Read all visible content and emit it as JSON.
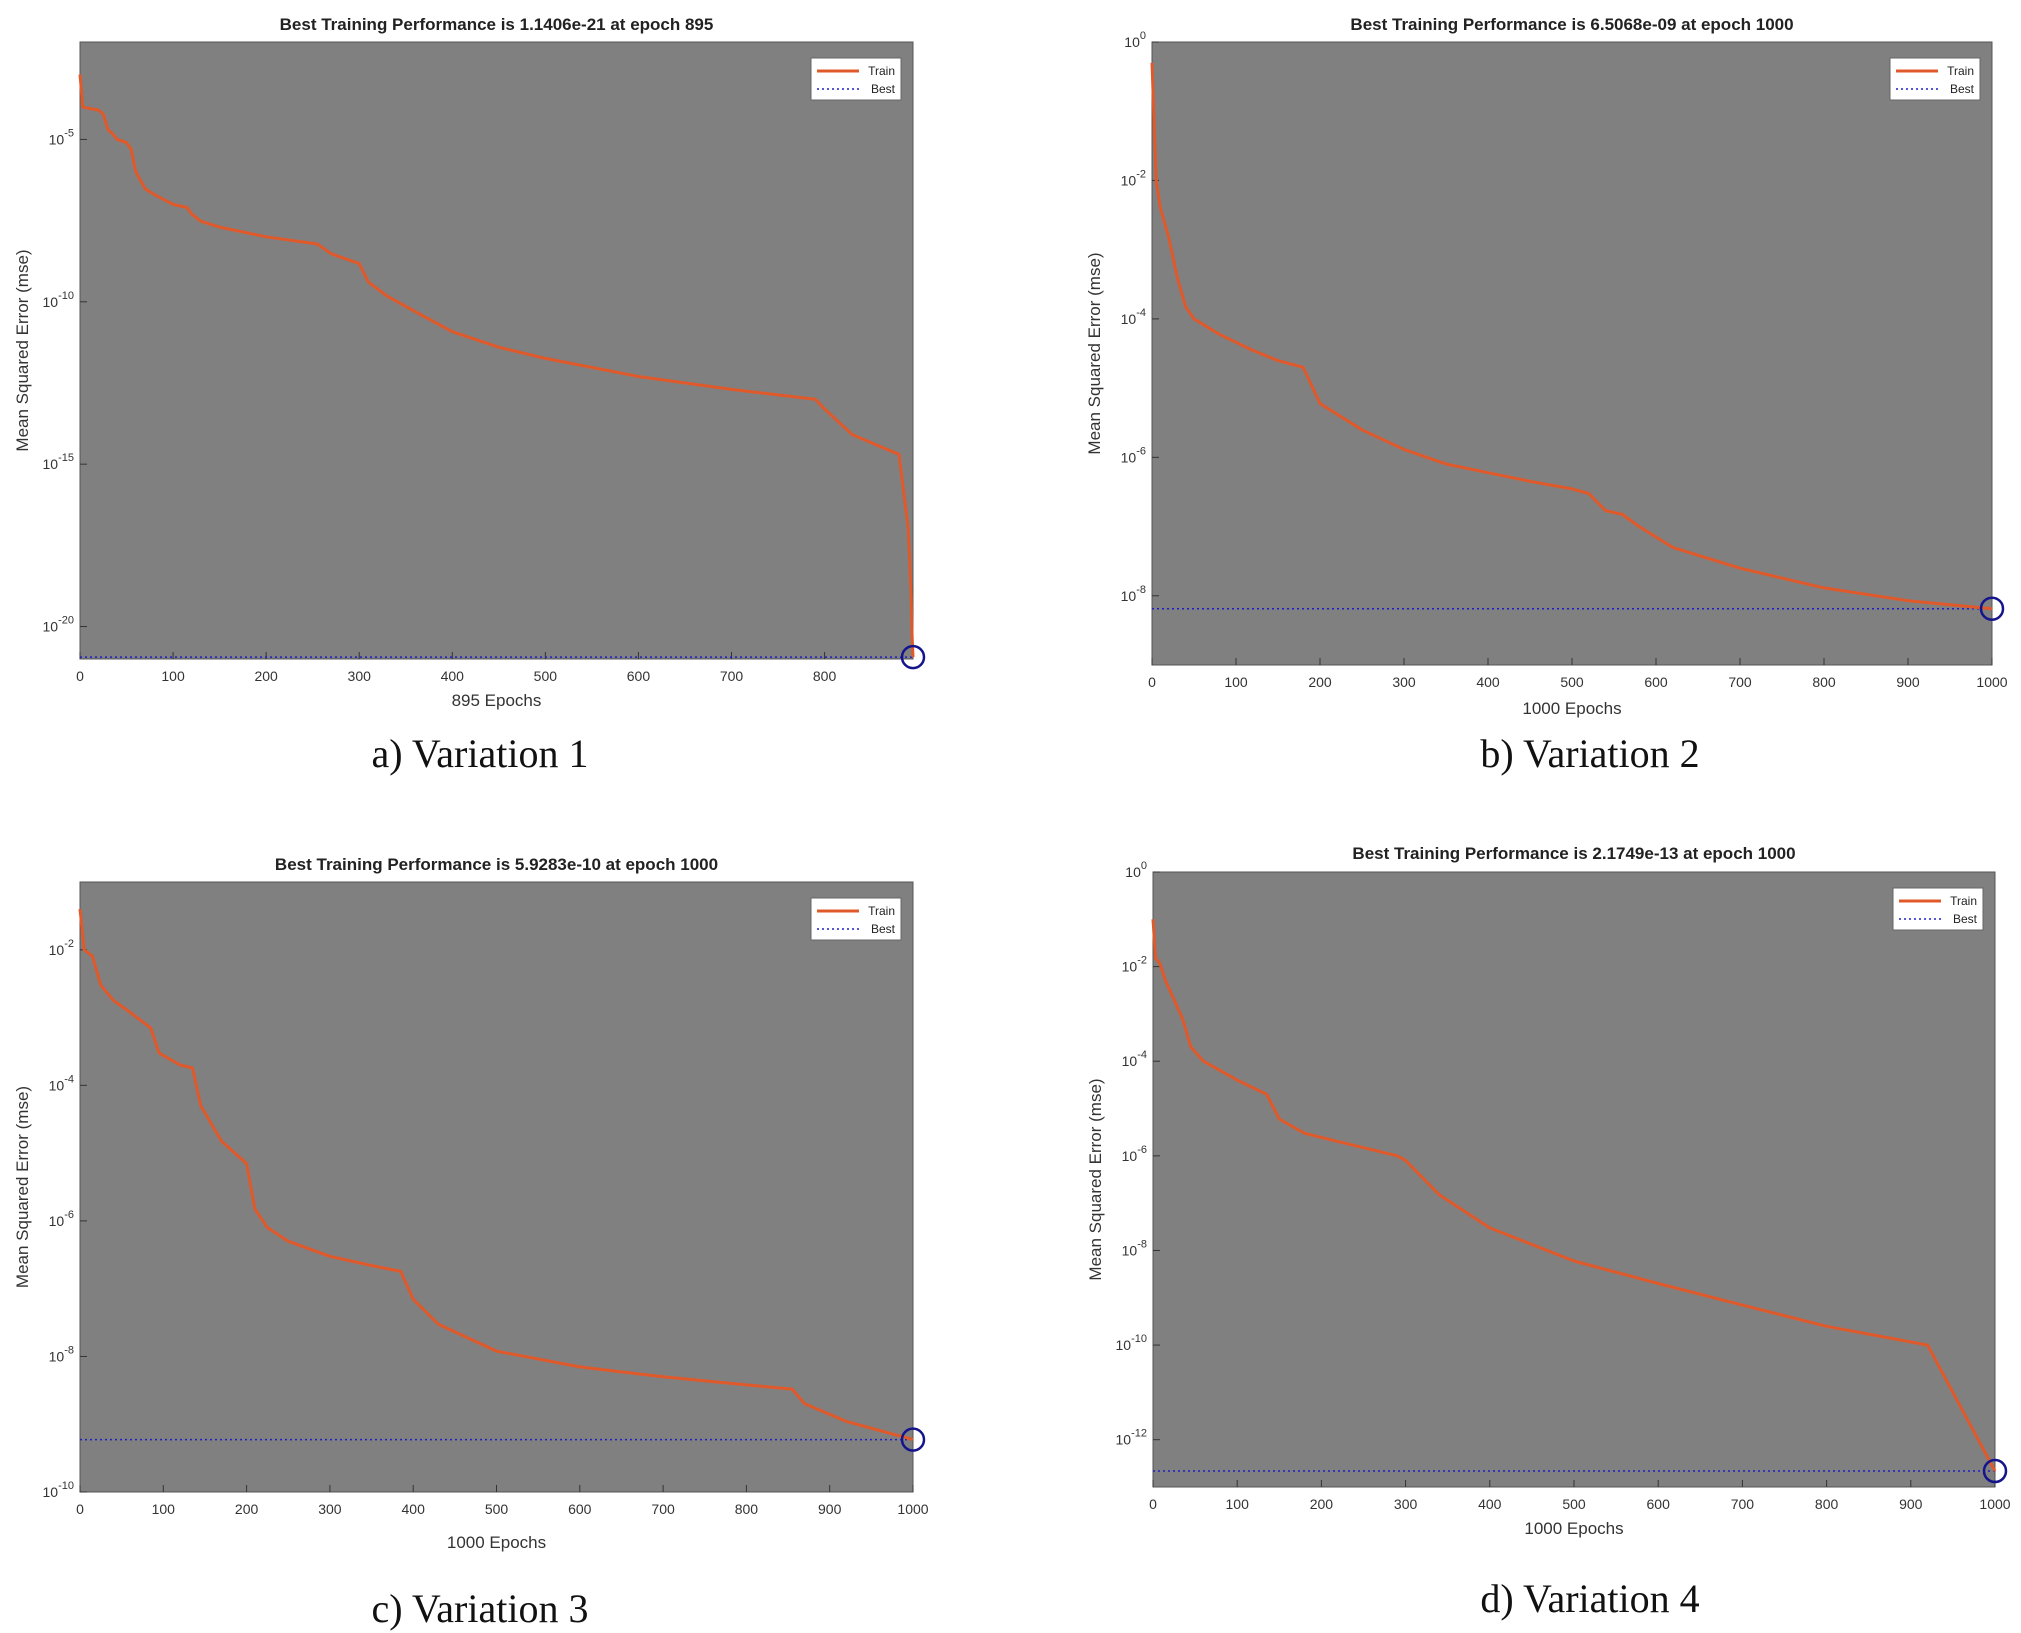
{
  "chart_data": [
    {
      "type": "line",
      "title": "Best Training Performance is 1.1406e-21 at epoch 895",
      "xlabel": "895 Epochs",
      "ylabel": "Mean Squared Error  (mse)",
      "caption": "a) Variation 1",
      "y_scale": "log",
      "xlim": [
        0,
        895
      ],
      "ylim": [
        1e-21,
        0.01
      ],
      "x_ticks": [
        0,
        100,
        200,
        300,
        400,
        500,
        600,
        700,
        800
      ],
      "y_ticks": [
        {
          "base": "10",
          "exp": "-5"
        },
        {
          "base": "10",
          "exp": "-10"
        },
        {
          "base": "10",
          "exp": "-15"
        },
        {
          "base": "10",
          "exp": "-20"
        }
      ],
      "y_tick_values": [
        1e-05,
        1e-10,
        1e-15,
        1e-20
      ],
      "legend": {
        "position": "top-right",
        "entries": [
          "Train",
          "Best"
        ]
      },
      "grid": false,
      "series": [
        {
          "name": "Train",
          "x": [
            0,
            3,
            10,
            20,
            25,
            30,
            35,
            40,
            50,
            55,
            60,
            70,
            80,
            100,
            115,
            120,
            130,
            150,
            200,
            255,
            270,
            300,
            310,
            330,
            360,
            400,
            450,
            500,
            600,
            700,
            790,
            800,
            830,
            880,
            890,
            893,
            894,
            895
          ],
          "y": [
            0.001,
            0.0001,
            9e-05,
            8e-05,
            6e-05,
            2e-05,
            1.5e-05,
            1e-05,
            8e-06,
            5e-06,
            1e-06,
            3e-07,
            2e-07,
            1e-07,
            8e-08,
            5e-08,
            3e-08,
            2e-08,
            1e-08,
            6e-09,
            3e-09,
            1.5e-09,
            4e-10,
            1.5e-10,
            5e-11,
            1.2e-11,
            4e-12,
            1.8e-12,
            5e-13,
            2e-13,
            1e-13,
            5e-14,
            8e-15,
            2e-15,
            1e-17,
            1e-19,
            5e-21,
            1.1406e-21
          ]
        },
        {
          "name": "Best",
          "value": 1.1406e-21,
          "epoch": 895
        }
      ]
    },
    {
      "type": "line",
      "title": "Best Training Performance is 6.5068e-09 at epoch 1000",
      "xlabel": "1000 Epochs",
      "ylabel": "Mean Squared Error  (mse)",
      "caption": "b) Variation 2",
      "y_scale": "log",
      "xlim": [
        0,
        1000
      ],
      "ylim": [
        1e-09,
        1
      ],
      "x_ticks": [
        0,
        100,
        200,
        300,
        400,
        500,
        600,
        700,
        800,
        900,
        1000
      ],
      "y_ticks": [
        {
          "base": "10",
          "exp": "0"
        },
        {
          "base": "10",
          "exp": "-2"
        },
        {
          "base": "10",
          "exp": "-4"
        },
        {
          "base": "10",
          "exp": "-6"
        },
        {
          "base": "10",
          "exp": "-8"
        }
      ],
      "y_tick_values": [
        1,
        0.01,
        0.0001,
        1e-06,
        1e-08
      ],
      "legend": {
        "position": "top-right",
        "entries": [
          "Train",
          "Best"
        ]
      },
      "grid": false,
      "series": [
        {
          "name": "Train",
          "x": [
            0,
            2,
            5,
            10,
            20,
            30,
            40,
            50,
            80,
            120,
            150,
            180,
            200,
            250,
            300,
            350,
            400,
            450,
            500,
            520,
            540,
            560,
            580,
            620,
            700,
            800,
            900,
            1000
          ],
          "y": [
            0.5,
            0.1,
            0.01,
            0.004,
            0.0015,
            0.0004,
            0.00015,
            0.0001,
            6e-05,
            3.5e-05,
            2.5e-05,
            2e-05,
            6e-06,
            2.5e-06,
            1.3e-06,
            8e-07,
            6e-07,
            4.5e-07,
            3.5e-07,
            3e-07,
            1.7e-07,
            1.5e-07,
            1e-07,
            5e-08,
            2.5e-08,
            1.3e-08,
            8.5e-09,
            6.5068e-09
          ]
        },
        {
          "name": "Best",
          "value": 6.5068e-09,
          "epoch": 1000
        }
      ]
    },
    {
      "type": "line",
      "title": "Best Training Performance is 5.9283e-10 at epoch 1000",
      "xlabel": "1000 Epochs",
      "ylabel": "Mean Squared Error  (mse)",
      "caption": "c) Variation 3",
      "y_scale": "log",
      "xlim": [
        0,
        1000
      ],
      "ylim": [
        1e-10,
        0.1
      ],
      "x_ticks": [
        0,
        100,
        200,
        300,
        400,
        500,
        600,
        700,
        800,
        900,
        1000
      ],
      "y_ticks": [
        {
          "base": "10",
          "exp": "-2"
        },
        {
          "base": "10",
          "exp": "-4"
        },
        {
          "base": "10",
          "exp": "-6"
        },
        {
          "base": "10",
          "exp": "-8"
        },
        {
          "base": "10",
          "exp": "-10"
        }
      ],
      "y_tick_values": [
        0.01,
        0.0001,
        1e-06,
        1e-08,
        1e-10
      ],
      "legend": {
        "position": "top-right",
        "entries": [
          "Train",
          "Best"
        ]
      },
      "grid": false,
      "series": [
        {
          "name": "Train",
          "x": [
            0,
            5,
            15,
            25,
            40,
            60,
            85,
            95,
            120,
            135,
            145,
            170,
            200,
            210,
            225,
            250,
            300,
            350,
            385,
            400,
            430,
            500,
            600,
            700,
            800,
            855,
            870,
            920,
            1000
          ],
          "y": [
            0.04,
            0.01,
            0.008,
            0.003,
            0.0018,
            0.0012,
            0.0007,
            0.0003,
            0.0002,
            0.00018,
            5e-05,
            1.5e-05,
            7e-06,
            1.5e-06,
            8e-07,
            5e-07,
            3e-07,
            2.2e-07,
            1.8e-07,
            7e-08,
            3e-08,
            1.2e-08,
            7e-09,
            5e-09,
            3.8e-09,
            3.3e-09,
            2e-09,
            1.1e-09,
            5.9283e-10
          ]
        },
        {
          "name": "Best",
          "value": 5.9283e-10,
          "epoch": 1000
        }
      ]
    },
    {
      "type": "line",
      "title": "Best Training Performance is 2.1749e-13 at epoch 1000",
      "xlabel": "1000 Epochs",
      "ylabel": "Mean Squared Error  (mse)",
      "caption": "d) Variation 4",
      "y_scale": "log",
      "xlim": [
        0,
        1000
      ],
      "ylim": [
        1e-13,
        1
      ],
      "x_ticks": [
        0,
        100,
        200,
        300,
        400,
        500,
        600,
        700,
        800,
        900,
        1000
      ],
      "y_ticks": [
        {
          "base": "10",
          "exp": "0"
        },
        {
          "base": "10",
          "exp": "-2"
        },
        {
          "base": "10",
          "exp": "-4"
        },
        {
          "base": "10",
          "exp": "-6"
        },
        {
          "base": "10",
          "exp": "-8"
        },
        {
          "base": "10",
          "exp": "-10"
        },
        {
          "base": "10",
          "exp": "-12"
        }
      ],
      "y_tick_values": [
        1,
        0.01,
        0.0001,
        1e-06,
        1e-08,
        1e-10,
        1e-12
      ],
      "legend": {
        "position": "top-right",
        "entries": [
          "Train",
          "Best"
        ]
      },
      "grid": false,
      "series": [
        {
          "name": "Train",
          "x": [
            0,
            3,
            8,
            15,
            25,
            35,
            45,
            60,
            100,
            135,
            150,
            180,
            220,
            290,
            300,
            340,
            400,
            500,
            600,
            700,
            800,
            920,
            1000
          ],
          "y": [
            0.1,
            0.015,
            0.012,
            0.005,
            0.002,
            0.0008,
            0.0002,
            0.0001,
            4e-05,
            2e-05,
            6e-06,
            3e-06,
            2e-06,
            1e-06,
            8e-07,
            1.5e-07,
            3e-08,
            6e-09,
            2e-09,
            7e-10,
            2.5e-10,
            1e-10,
            2.1749e-13
          ]
        },
        {
          "name": "Best",
          "value": 2.1749e-13,
          "epoch": 1000
        }
      ]
    }
  ],
  "colors": {
    "plot_background": "#808080",
    "train_line": "#e0592a",
    "best_line": "#1e1ec8",
    "best_marker": "#14148c",
    "legend_background": "#ffffff"
  }
}
